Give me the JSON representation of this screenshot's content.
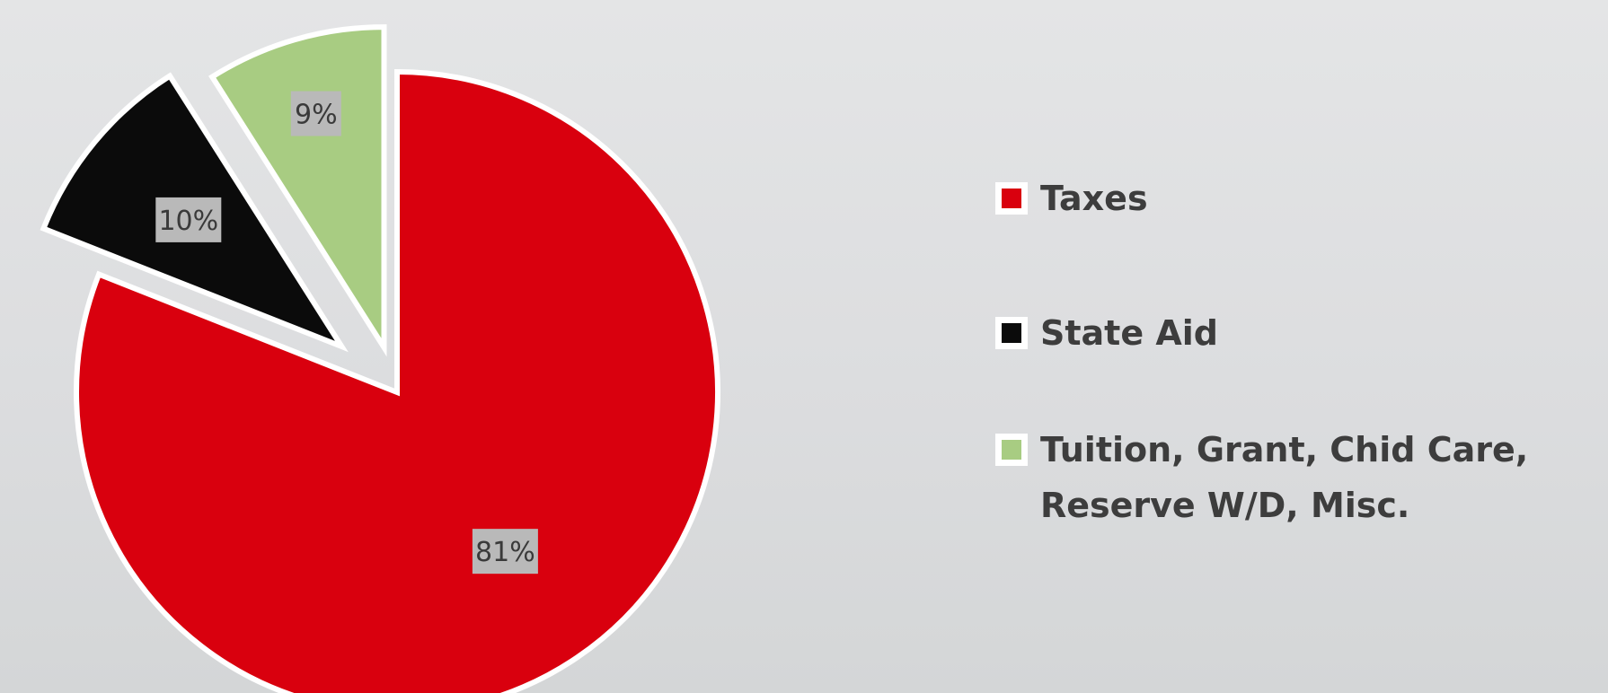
{
  "chart_data": {
    "type": "pie",
    "exploded": true,
    "categories": [
      "Taxes",
      "State Aid",
      "Tuition, Grant, Chid Care, Reserve W/D, Misc."
    ],
    "values": [
      81,
      10,
      9
    ],
    "data_labels": [
      "81%",
      "10%",
      "9%"
    ],
    "colors": [
      "#d9000e",
      "#0b0b0b",
      "#a8cc82"
    ],
    "legend_placement": "right",
    "title": ""
  },
  "legend": {
    "items": [
      {
        "label": "Taxes",
        "color": "#d9000e"
      },
      {
        "label": "State Aid",
        "color": "#0b0b0b"
      },
      {
        "label": "Tuition, Grant, Chid Care, Reserve W/D, Misc.",
        "color": "#a8cc82"
      }
    ]
  }
}
